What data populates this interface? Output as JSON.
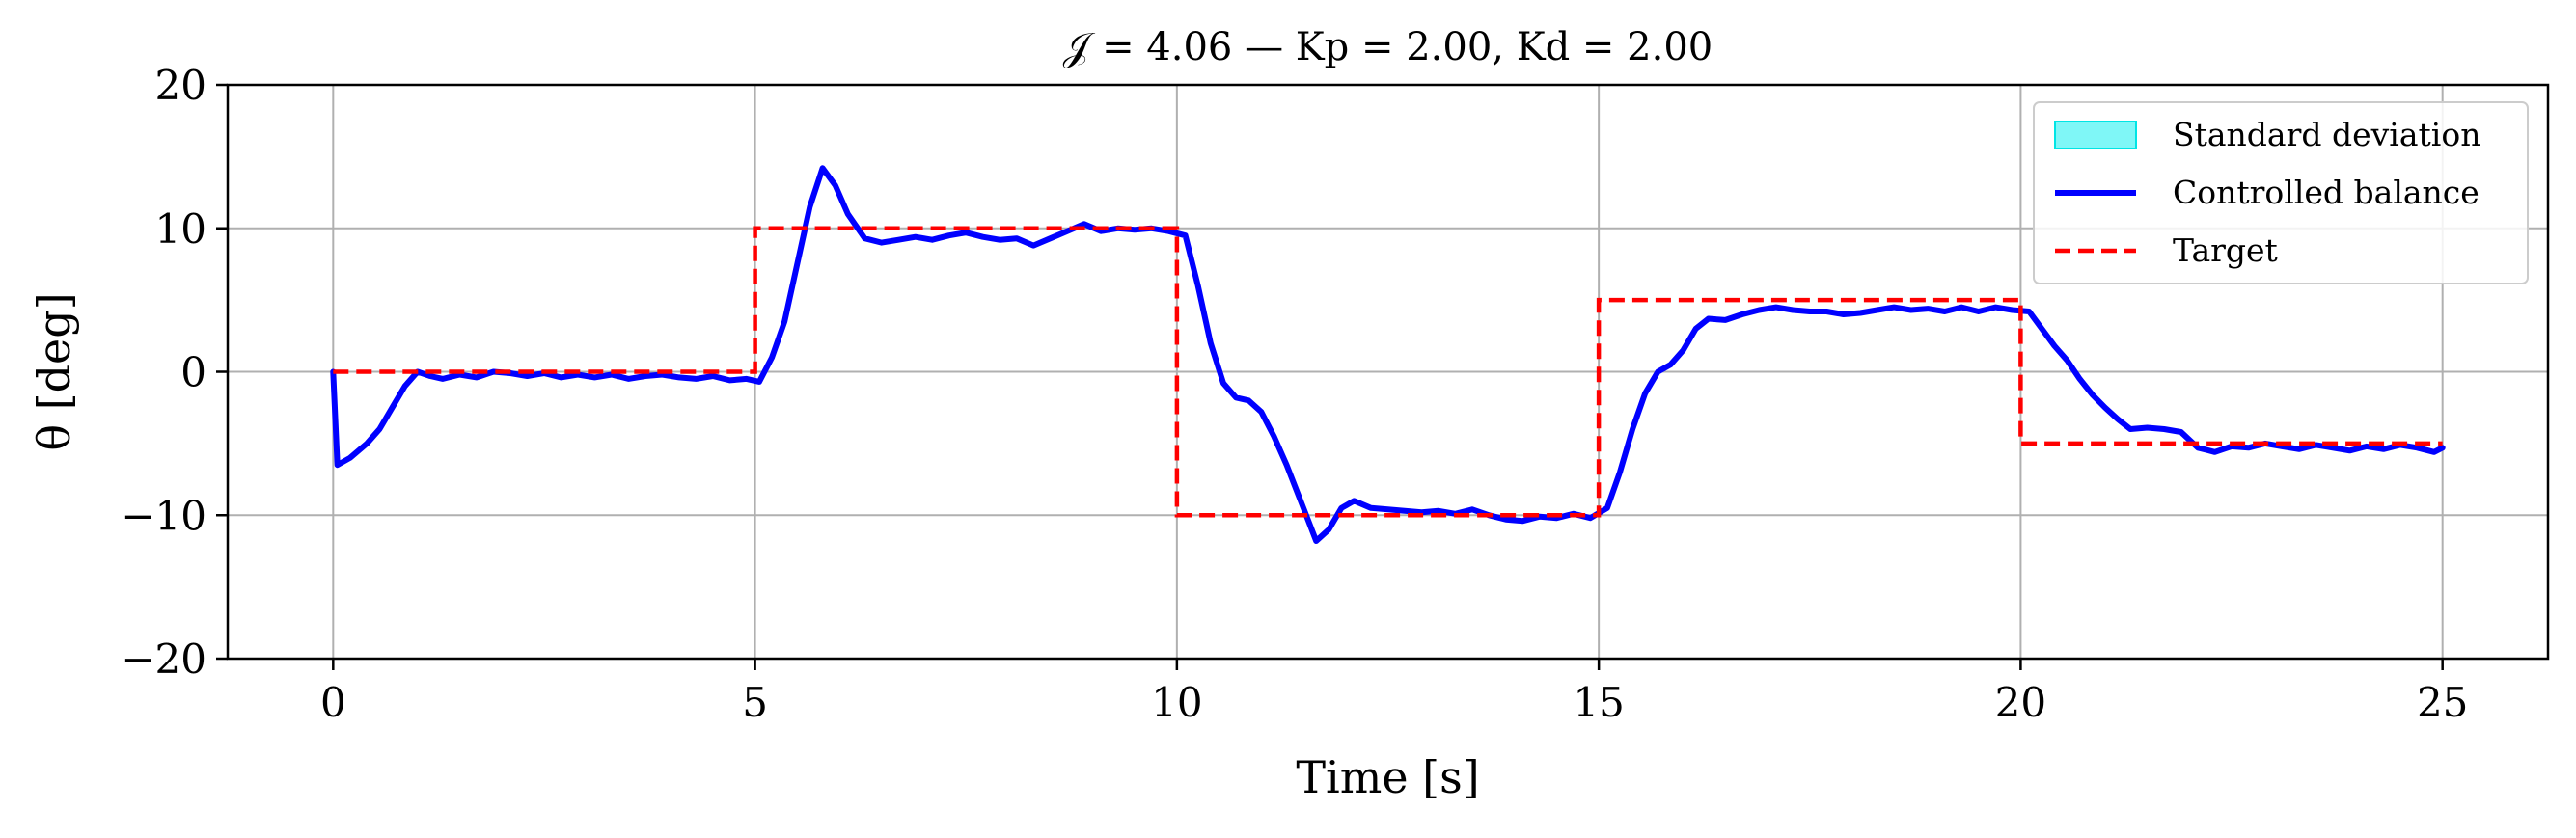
{
  "chart_data": {
    "type": "line",
    "title": "𝒥 = 4.06 — Kp = 2.00, Kd = 2.00",
    "xlabel": "Time [s]",
    "ylabel": "θ [deg]",
    "xlim": [
      -1.25,
      26.25
    ],
    "ylim": [
      -20,
      20
    ],
    "xticks": [
      0,
      5,
      10,
      15,
      20,
      25
    ],
    "yticks": [
      -20,
      -10,
      0,
      10,
      20
    ],
    "xtick_labels": [
      "0",
      "5",
      "10",
      "15",
      "20",
      "25"
    ],
    "ytick_labels": [
      "−20",
      "−10",
      "0",
      "10",
      "20"
    ],
    "grid": true,
    "legend_position": "top-right",
    "colors": {
      "std_fill": "#7ff7f7",
      "std_edge": "#00e5e5",
      "controlled": "#0000ff",
      "target": "#ff0000",
      "grid": "#b0b0b0"
    },
    "legend": [
      {
        "label": "Standard deviation",
        "style": "patch"
      },
      {
        "label": "Controlled balance",
        "style": "solid"
      },
      {
        "label": "Target",
        "style": "dashed"
      }
    ],
    "series": [
      {
        "name": "Target",
        "style": "dashed",
        "x": [
          0,
          0,
          5,
          5,
          10,
          10,
          15,
          15,
          20,
          20,
          25
        ],
        "y": [
          0,
          0,
          0,
          10,
          10,
          -10,
          -10,
          5,
          5,
          -5,
          -5
        ]
      },
      {
        "name": "Controlled balance",
        "style": "solid",
        "x": [
          0,
          0.05,
          0.2,
          0.4,
          0.55,
          0.7,
          0.85,
          1.0,
          1.15,
          1.3,
          1.5,
          1.7,
          1.9,
          2.1,
          2.3,
          2.5,
          2.7,
          2.9,
          3.1,
          3.3,
          3.5,
          3.7,
          3.9,
          4.1,
          4.3,
          4.5,
          4.7,
          4.9,
          5.05,
          5.2,
          5.35,
          5.5,
          5.65,
          5.8,
          5.95,
          6.1,
          6.3,
          6.5,
          6.7,
          6.9,
          7.1,
          7.3,
          7.5,
          7.7,
          7.9,
          8.1,
          8.3,
          8.5,
          8.7,
          8.9,
          9.1,
          9.3,
          9.5,
          9.7,
          9.9,
          10.1,
          10.25,
          10.4,
          10.55,
          10.7,
          10.85,
          11.0,
          11.15,
          11.3,
          11.5,
          11.65,
          11.8,
          11.95,
          12.1,
          12.3,
          12.5,
          12.7,
          12.9,
          13.1,
          13.3,
          13.5,
          13.7,
          13.9,
          14.1,
          14.3,
          14.5,
          14.7,
          14.9,
          15.1,
          15.25,
          15.4,
          15.55,
          15.7,
          15.85,
          16.0,
          16.15,
          16.3,
          16.5,
          16.7,
          16.9,
          17.1,
          17.3,
          17.5,
          17.7,
          17.9,
          18.1,
          18.3,
          18.5,
          18.7,
          18.9,
          19.1,
          19.3,
          19.5,
          19.7,
          19.9,
          20.1,
          20.25,
          20.4,
          20.55,
          20.7,
          20.85,
          21.0,
          21.15,
          21.3,
          21.5,
          21.7,
          21.9,
          22.1,
          22.3,
          22.5,
          22.7,
          22.9,
          23.1,
          23.3,
          23.5,
          23.7,
          23.9,
          24.1,
          24.3,
          24.5,
          24.7,
          24.9,
          25.0
        ],
        "y": [
          0,
          -6.5,
          -6.0,
          -5.0,
          -4.0,
          -2.5,
          -1.0,
          0.0,
          -0.3,
          -0.5,
          -0.2,
          -0.4,
          0.0,
          -0.1,
          -0.3,
          -0.1,
          -0.4,
          -0.2,
          -0.4,
          -0.2,
          -0.5,
          -0.3,
          -0.2,
          -0.4,
          -0.5,
          -0.3,
          -0.6,
          -0.5,
          -0.7,
          1.0,
          3.5,
          7.5,
          11.5,
          14.2,
          13.0,
          11.0,
          9.3,
          9.0,
          9.2,
          9.4,
          9.2,
          9.5,
          9.7,
          9.4,
          9.2,
          9.3,
          8.8,
          9.3,
          9.8,
          10.3,
          9.8,
          10.0,
          9.9,
          10.0,
          9.8,
          9.5,
          6.0,
          2.0,
          -0.8,
          -1.8,
          -2.0,
          -2.8,
          -4.5,
          -6.5,
          -9.5,
          -11.8,
          -11.0,
          -9.5,
          -9.0,
          -9.5,
          -9.6,
          -9.7,
          -9.8,
          -9.7,
          -9.9,
          -9.6,
          -10.0,
          -10.3,
          -10.4,
          -10.1,
          -10.2,
          -9.9,
          -10.2,
          -9.5,
          -7.0,
          -4.0,
          -1.5,
          0.0,
          0.5,
          1.5,
          3.0,
          3.7,
          3.6,
          4.0,
          4.3,
          4.5,
          4.3,
          4.2,
          4.2,
          4.0,
          4.1,
          4.3,
          4.5,
          4.3,
          4.4,
          4.2,
          4.5,
          4.2,
          4.5,
          4.3,
          4.2,
          3.0,
          1.8,
          0.8,
          -0.5,
          -1.6,
          -2.5,
          -3.3,
          -4.0,
          -3.9,
          -4.0,
          -4.2,
          -5.3,
          -5.6,
          -5.2,
          -5.3,
          -5.0,
          -5.2,
          -5.4,
          -5.1,
          -5.3,
          -5.5,
          -5.2,
          -5.4,
          -5.1,
          -5.3,
          -5.6,
          -5.3
        ]
      }
    ]
  }
}
